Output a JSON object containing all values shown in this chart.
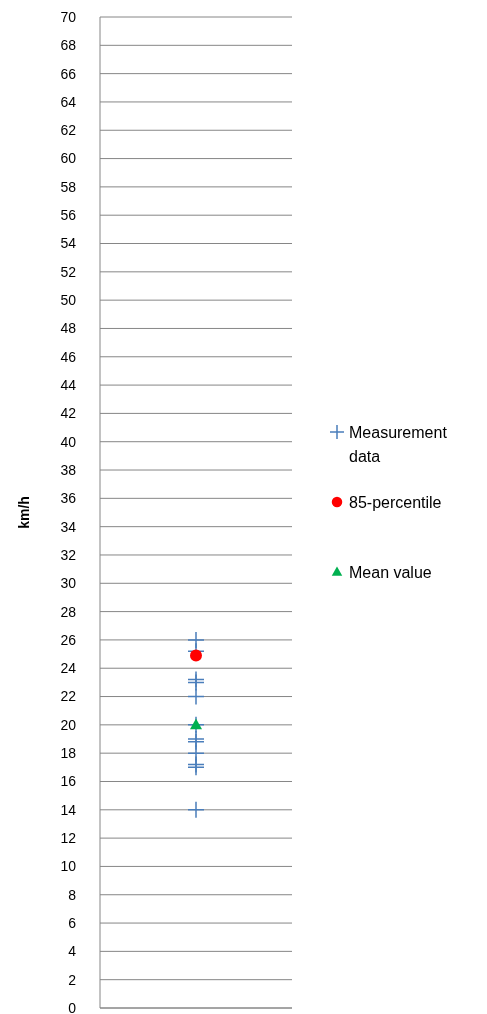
{
  "chart_data": {
    "type": "scatter",
    "ylabel": "km/h",
    "categories": [
      null
    ],
    "ylim": [
      0,
      70
    ],
    "yticks": [
      0,
      2,
      4,
      6,
      8,
      10,
      12,
      14,
      16,
      18,
      20,
      22,
      24,
      26,
      28,
      30,
      32,
      34,
      36,
      38,
      40,
      42,
      44,
      46,
      48,
      50,
      52,
      54,
      56,
      58,
      60,
      62,
      64,
      66,
      68,
      70
    ],
    "grid": "y",
    "legend": "right",
    "series": [
      {
        "name": "Measurement data",
        "color": "#4a7ebb",
        "marker": "cross",
        "values": [
          26
        ]
      },
      {
        "color": "#4a7ebb",
        "marker": "cross",
        "values": [
          25.2
        ]
      },
      {
        "color": "#4a7ebb",
        "marker": "cross",
        "values": [
          23.2
        ]
      },
      {
        "color": "#4a7ebb",
        "marker": "cross",
        "values": [
          23
        ]
      },
      {
        "color": "#4a7ebb",
        "marker": "cross",
        "values": [
          22
        ]
      },
      {
        "color": "#4a7ebb",
        "marker": "cross",
        "values": [
          20
        ]
      },
      {
        "color": "#4a7ebb",
        "marker": "cross",
        "values": [
          19
        ]
      },
      {
        "color": "#4a7ebb",
        "marker": "cross",
        "values": [
          18.8
        ]
      },
      {
        "color": "#4a7ebb",
        "marker": "cross",
        "values": [
          18
        ]
      },
      {
        "color": "#4a7ebb",
        "marker": "cross",
        "values": [
          17.2
        ]
      },
      {
        "color": "#4a7ebb",
        "marker": "cross",
        "values": [
          17
        ]
      },
      {
        "color": "#4a7ebb",
        "marker": "cross",
        "values": [
          14
        ]
      },
      {
        "name": "85-percentile",
        "color": "#ff0000",
        "marker": "circle",
        "values": [
          24.9
        ]
      },
      {
        "name": "Mean value",
        "color": "#00b050",
        "marker": "triangle",
        "values": [
          20
        ]
      }
    ]
  }
}
